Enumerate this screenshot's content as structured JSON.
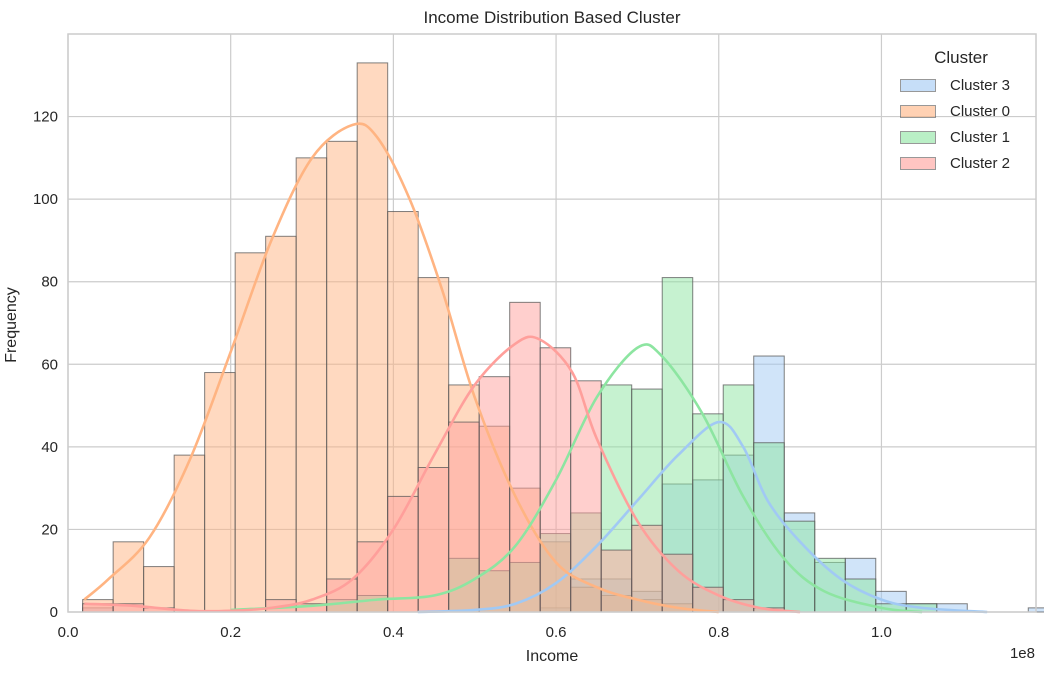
{
  "chart_data": {
    "type": "histogram",
    "title": "Income Distribution Based Cluster",
    "xlabel": "Income",
    "ylabel": "Frequency",
    "x_offset_label": "1e8",
    "xlim": [
      0.0,
      1.19
    ],
    "ylim": [
      0,
      140
    ],
    "x_ticks": [
      0.0,
      0.2,
      0.4,
      0.6,
      0.8,
      1.0
    ],
    "x_tick_labels": [
      "0.0",
      "0.2",
      "0.4",
      "0.6",
      "0.8",
      "1.0"
    ],
    "y_ticks": [
      0,
      20,
      40,
      60,
      80,
      100,
      120
    ],
    "y_tick_labels": [
      "0",
      "20",
      "40",
      "60",
      "80",
      "100",
      "120"
    ],
    "grid": true,
    "legend_title": "Cluster",
    "legend_position": "top-right",
    "bin_start": 0.018,
    "bin_width": 0.0375,
    "series": [
      {
        "name": "Cluster 3",
        "color": "#a1c9f4",
        "values": [
          1,
          0,
          0,
          0,
          0,
          0,
          0,
          0,
          0,
          0,
          0,
          0,
          0,
          0,
          0,
          1,
          8,
          8,
          5,
          31,
          32,
          38,
          62,
          24,
          12,
          13,
          5,
          2,
          2,
          0,
          0,
          1
        ],
        "kde": [
          [
            0.43,
            0
          ],
          [
            0.5,
            0.5
          ],
          [
            0.55,
            2
          ],
          [
            0.6,
            7
          ],
          [
            0.65,
            16
          ],
          [
            0.7,
            27
          ],
          [
            0.75,
            38
          ],
          [
            0.8,
            46
          ],
          [
            0.83,
            40
          ],
          [
            0.86,
            27
          ],
          [
            0.9,
            17
          ],
          [
            0.95,
            8
          ],
          [
            1.0,
            3
          ],
          [
            1.05,
            1
          ],
          [
            1.13,
            0
          ]
        ]
      },
      {
        "name": "Cluster 0",
        "color": "#ffb482",
        "values": [
          3,
          17,
          11,
          38,
          58,
          87,
          91,
          110,
          114,
          133,
          97,
          81,
          55,
          45,
          30,
          17,
          6,
          4,
          3,
          2,
          0,
          0,
          0,
          0,
          0,
          0,
          0,
          0,
          0,
          0,
          0,
          0
        ],
        "kde": [
          [
            0.02,
            3
          ],
          [
            0.05,
            8
          ],
          [
            0.1,
            18
          ],
          [
            0.15,
            37
          ],
          [
            0.2,
            63
          ],
          [
            0.25,
            90
          ],
          [
            0.3,
            110
          ],
          [
            0.35,
            118
          ],
          [
            0.38,
            115
          ],
          [
            0.42,
            100
          ],
          [
            0.46,
            78
          ],
          [
            0.5,
            52
          ],
          [
            0.55,
            28
          ],
          [
            0.6,
            12
          ],
          [
            0.65,
            6
          ],
          [
            0.7,
            3
          ],
          [
            0.75,
            1
          ],
          [
            0.8,
            0
          ]
        ]
      },
      {
        "name": "Cluster 1",
        "color": "#8de5a1",
        "values": [
          0,
          0,
          0,
          0,
          0,
          0,
          0,
          0,
          3,
          4,
          0,
          0,
          13,
          10,
          12,
          19,
          24,
          55,
          54,
          81,
          48,
          55,
          41,
          22,
          13,
          8,
          2,
          2,
          0,
          0,
          0,
          0
        ],
        "kde": [
          [
            0.2,
            0.5
          ],
          [
            0.3,
            1.5
          ],
          [
            0.38,
            3
          ],
          [
            0.45,
            4
          ],
          [
            0.5,
            8
          ],
          [
            0.55,
            16
          ],
          [
            0.6,
            32
          ],
          [
            0.65,
            52
          ],
          [
            0.7,
            64
          ],
          [
            0.73,
            62
          ],
          [
            0.78,
            48
          ],
          [
            0.83,
            28
          ],
          [
            0.88,
            13
          ],
          [
            0.93,
            5
          ],
          [
            1.0,
            1
          ],
          [
            1.05,
            0
          ]
        ]
      },
      {
        "name": "Cluster 2",
        "color": "#ff9f9b",
        "values": [
          2,
          2,
          1,
          0,
          0,
          0,
          3,
          2,
          8,
          17,
          28,
          35,
          46,
          57,
          75,
          64,
          56,
          15,
          21,
          14,
          6,
          3,
          1,
          0,
          0,
          0,
          0,
          0,
          0,
          0,
          0,
          0
        ],
        "kde": [
          [
            0.02,
            2
          ],
          [
            0.08,
            1.5
          ],
          [
            0.15,
            0.3
          ],
          [
            0.2,
            0.3
          ],
          [
            0.25,
            1
          ],
          [
            0.3,
            3
          ],
          [
            0.35,
            8
          ],
          [
            0.4,
            20
          ],
          [
            0.45,
            38
          ],
          [
            0.5,
            55
          ],
          [
            0.55,
            65
          ],
          [
            0.58,
            66
          ],
          [
            0.62,
            58
          ],
          [
            0.65,
            42
          ],
          [
            0.7,
            22
          ],
          [
            0.75,
            10
          ],
          [
            0.8,
            4
          ],
          [
            0.85,
            1
          ],
          [
            0.9,
            0
          ]
        ]
      }
    ]
  }
}
